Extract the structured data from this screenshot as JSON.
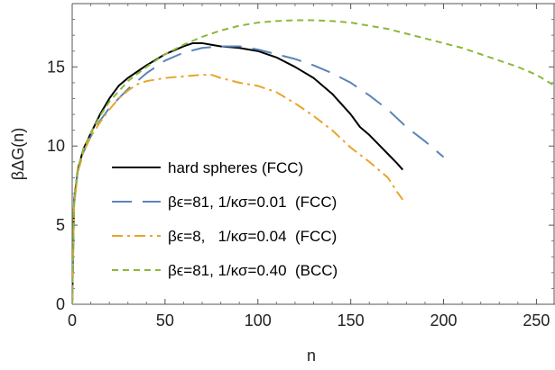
{
  "chart_data": {
    "type": "line",
    "xlabel": "n",
    "ylabel": "βΔG(n)",
    "xlim": [
      0,
      260
    ],
    "ylim": [
      0,
      19
    ],
    "x_ticks": [
      0,
      50,
      100,
      150,
      200,
      250
    ],
    "x_tick_labels": [
      "0",
      "50",
      "100",
      "150",
      "200",
      "250"
    ],
    "y_ticks": [
      0,
      5,
      10,
      15
    ],
    "y_tick_labels": [
      "0",
      "5",
      "10",
      "15"
    ],
    "grid": false,
    "legend_position": "lower-left",
    "series": [
      {
        "name": "hard spheres (FCC)",
        "color": "#000000",
        "dash": "solid",
        "x": [
          0,
          1,
          3,
          6,
          10,
          15,
          20,
          25,
          30,
          40,
          50,
          60,
          65,
          70,
          75,
          80,
          90,
          100,
          110,
          120,
          130,
          140,
          150,
          155,
          160,
          165,
          170,
          175,
          178
        ],
        "y": [
          0,
          6.5,
          8.5,
          9.8,
          10.8,
          12.0,
          13.0,
          13.8,
          14.3,
          15.1,
          15.8,
          16.3,
          16.5,
          16.5,
          16.4,
          16.3,
          16.2,
          16.0,
          15.6,
          15.0,
          14.3,
          13.3,
          12.0,
          11.2,
          10.7,
          10.1,
          9.5,
          8.9,
          8.5
        ]
      },
      {
        "name": "βϵ=81, 1/κσ=0.01  (FCC)",
        "color": "#5b84b8",
        "dash": "long-dash",
        "x": [
          0,
          1,
          3,
          6,
          10,
          15,
          20,
          30,
          40,
          50,
          60,
          70,
          80,
          90,
          100,
          110,
          120,
          130,
          140,
          150,
          160,
          170,
          180,
          190,
          200
        ],
        "y": [
          0,
          6.3,
          8.4,
          9.6,
          10.6,
          11.6,
          12.4,
          13.6,
          14.6,
          15.4,
          15.9,
          16.2,
          16.3,
          16.3,
          16.1,
          15.8,
          15.5,
          15.1,
          14.6,
          14.0,
          13.2,
          12.3,
          11.2,
          10.3,
          9.3
        ]
      },
      {
        "name": "βϵ=8,   1/κσ=0.04  (FCC)",
        "color": "#e8a52a",
        "dash": "dash-dot",
        "x": [
          0,
          1,
          3,
          6,
          10,
          15,
          20,
          25,
          30,
          35,
          40,
          50,
          60,
          70,
          75,
          80,
          90,
          100,
          110,
          120,
          130,
          140,
          150,
          160,
          170,
          175,
          178
        ],
        "y": [
          0,
          6.2,
          8.3,
          9.6,
          10.6,
          11.5,
          12.3,
          13.0,
          13.5,
          13.9,
          14.1,
          14.3,
          14.4,
          14.5,
          14.5,
          14.3,
          14.0,
          13.8,
          13.4,
          12.7,
          11.9,
          11.0,
          9.9,
          9.0,
          8.0,
          7.1,
          6.6
        ]
      },
      {
        "name": "βϵ=81, 1/κσ=0.40  (BCC)",
        "color": "#8bb83a",
        "dash": "short-dash",
        "x": [
          0,
          1,
          3,
          6,
          10,
          15,
          20,
          30,
          40,
          50,
          60,
          70,
          80,
          90,
          100,
          110,
          120,
          130,
          140,
          150,
          160,
          170,
          180,
          190,
          200,
          210,
          220,
          230,
          240,
          250,
          260
        ],
        "y": [
          0,
          6.4,
          8.5,
          9.8,
          10.8,
          11.9,
          12.8,
          14.1,
          15.0,
          15.8,
          16.4,
          16.9,
          17.3,
          17.6,
          17.8,
          17.9,
          17.95,
          17.95,
          17.9,
          17.8,
          17.6,
          17.4,
          17.1,
          16.8,
          16.5,
          16.2,
          15.8,
          15.4,
          15.0,
          14.5,
          13.8
        ]
      }
    ]
  }
}
